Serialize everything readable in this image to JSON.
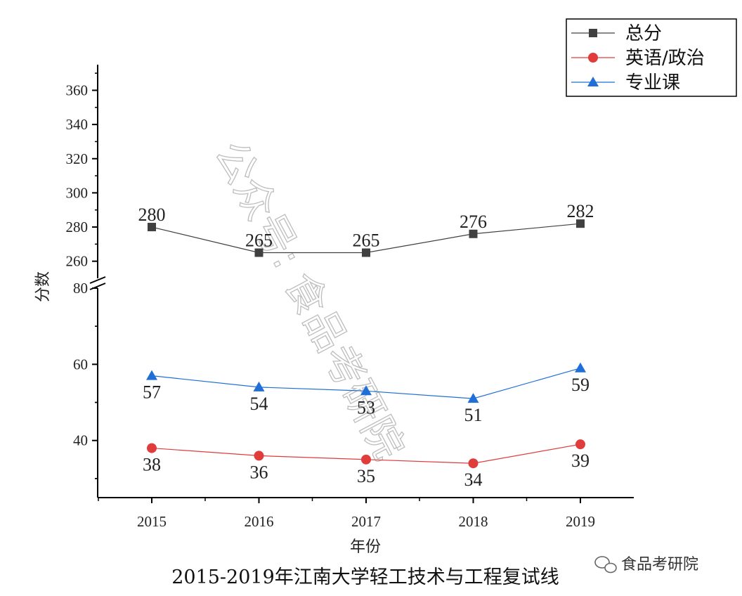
{
  "chart_data": {
    "type": "line",
    "title": "2015-2019年江南大学轻工技术与工程复试线",
    "xlabel": "年份",
    "ylabel": "分数",
    "categories": [
      "2015",
      "2016",
      "2017",
      "2018",
      "2019"
    ],
    "y_axis_broken": true,
    "ylim_upper": [
      250,
      375
    ],
    "ylim_lower": [
      25,
      80
    ],
    "yticks_upper": [
      260,
      280,
      300,
      320,
      340,
      360
    ],
    "yticks_lower": [
      40,
      60,
      80
    ],
    "grid": false,
    "legend_position": "top-right",
    "series": [
      {
        "name": "总分",
        "values": [
          280,
          265,
          265,
          276,
          282
        ],
        "color": "#404040",
        "marker": "square",
        "label_position": "above"
      },
      {
        "name": "英语/政治",
        "values": [
          38,
          36,
          35,
          34,
          39
        ],
        "color": "#e03c3c",
        "marker": "circle",
        "label_position": "below"
      },
      {
        "name": "专业课",
        "values": [
          57,
          54,
          53,
          51,
          59
        ],
        "color": "#1f6fd6",
        "marker": "triangle",
        "label_position": "below"
      }
    ]
  },
  "watermark": "公众号: 食品考研院",
  "logo": {
    "text": "食品考研院",
    "icon": "wechat-icon"
  }
}
